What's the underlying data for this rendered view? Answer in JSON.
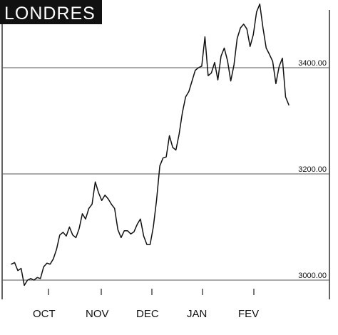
{
  "chart_data": {
    "type": "line",
    "title": "LONDRES",
    "xlabel": "",
    "ylabel": "",
    "x_tick_labels": [
      "OCT",
      "NOV",
      "DEC",
      "JAN",
      "FEV"
    ],
    "y_ticks": [
      3000,
      3200,
      3400
    ],
    "y_tick_labels": [
      "3000.00",
      "3200.00",
      "3400.00"
    ],
    "ylim": [
      2970,
      3520
    ],
    "grid": "horizontal",
    "y_axis_position": "right",
    "series": [
      {
        "values": [
          3030,
          3033,
          3018,
          3022,
          2990,
          3000,
          3003,
          3000,
          3005,
          3003,
          3025,
          3032,
          3030,
          3040,
          3058,
          3085,
          3090,
          3083,
          3100,
          3085,
          3080,
          3097,
          3125,
          3115,
          3135,
          3143,
          3185,
          3165,
          3150,
          3160,
          3153,
          3143,
          3135,
          3095,
          3080,
          3093,
          3093,
          3087,
          3091,
          3105,
          3115,
          3083,
          3067,
          3067,
          3100,
          3150,
          3215,
          3230,
          3232,
          3272,
          3250,
          3245,
          3275,
          3315,
          3345,
          3355,
          3375,
          3395,
          3400,
          3403,
          3458,
          3385,
          3390,
          3410,
          3377,
          3422,
          3437,
          3413,
          3375,
          3405,
          3455,
          3475,
          3482,
          3473,
          3440,
          3462,
          3505,
          3520,
          3475,
          3437,
          3425,
          3412,
          3370,
          3402,
          3418,
          3345,
          3330
        ]
      }
    ]
  }
}
